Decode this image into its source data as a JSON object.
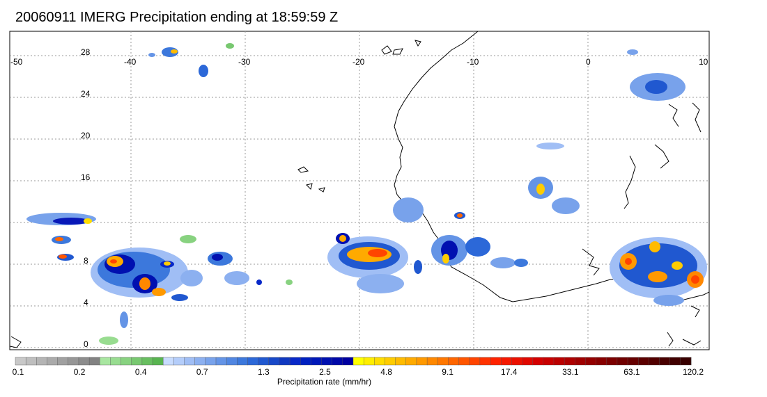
{
  "title": "20060911 IMERG Precipitation ending at 18:59:59 Z",
  "map": {
    "lon_labels": [
      "-50",
      "-40",
      "-30",
      "-20",
      "-10",
      "0",
      "10"
    ],
    "lat_labels": [
      "28",
      "24",
      "20",
      "16",
      "8",
      "4",
      "0"
    ]
  },
  "colorbar": {
    "label": "Precipitation rate (mm/hr)",
    "ticks": [
      "0.1",
      "0.2",
      "0.4",
      "0.7",
      "1.3",
      "2.5",
      "4.8",
      "9.1",
      "17.4",
      "33.1",
      "63.1",
      "120.2"
    ],
    "colors": [
      "#c8c8c8",
      "#bebebe",
      "#b4b4b4",
      "#aaaaaa",
      "#a0a0a0",
      "#969696",
      "#8c8c8c",
      "#828282",
      "#a8e6a0",
      "#98dc90",
      "#88d280",
      "#78c870",
      "#68be60",
      "#58b450",
      "#c8dcff",
      "#b4cdfa",
      "#a0bef5",
      "#8cb0f0",
      "#78a2eb",
      "#6494e6",
      "#5086e1",
      "#3c78dc",
      "#2c68d8",
      "#2058d0",
      "#1848c8",
      "#1038c0",
      "#0828c8",
      "#0020c0",
      "#0018b8",
      "#0010b0",
      "#0008a8",
      "#0000a0",
      "#ffff00",
      "#ffee00",
      "#ffdd00",
      "#ffcc00",
      "#ffbb00",
      "#ffaa00",
      "#ff9900",
      "#ff8800",
      "#ff7700",
      "#ff6600",
      "#ff5500",
      "#ff4400",
      "#ff3300",
      "#ff2200",
      "#f51800",
      "#eb1000",
      "#e00800",
      "#d40000",
      "#c80000",
      "#bb0000",
      "#ae0000",
      "#a00000",
      "#940000",
      "#880000",
      "#7c0000",
      "#700000",
      "#660000",
      "#5c0000",
      "#520000",
      "#480000",
      "#400000",
      "#380000"
    ]
  }
}
